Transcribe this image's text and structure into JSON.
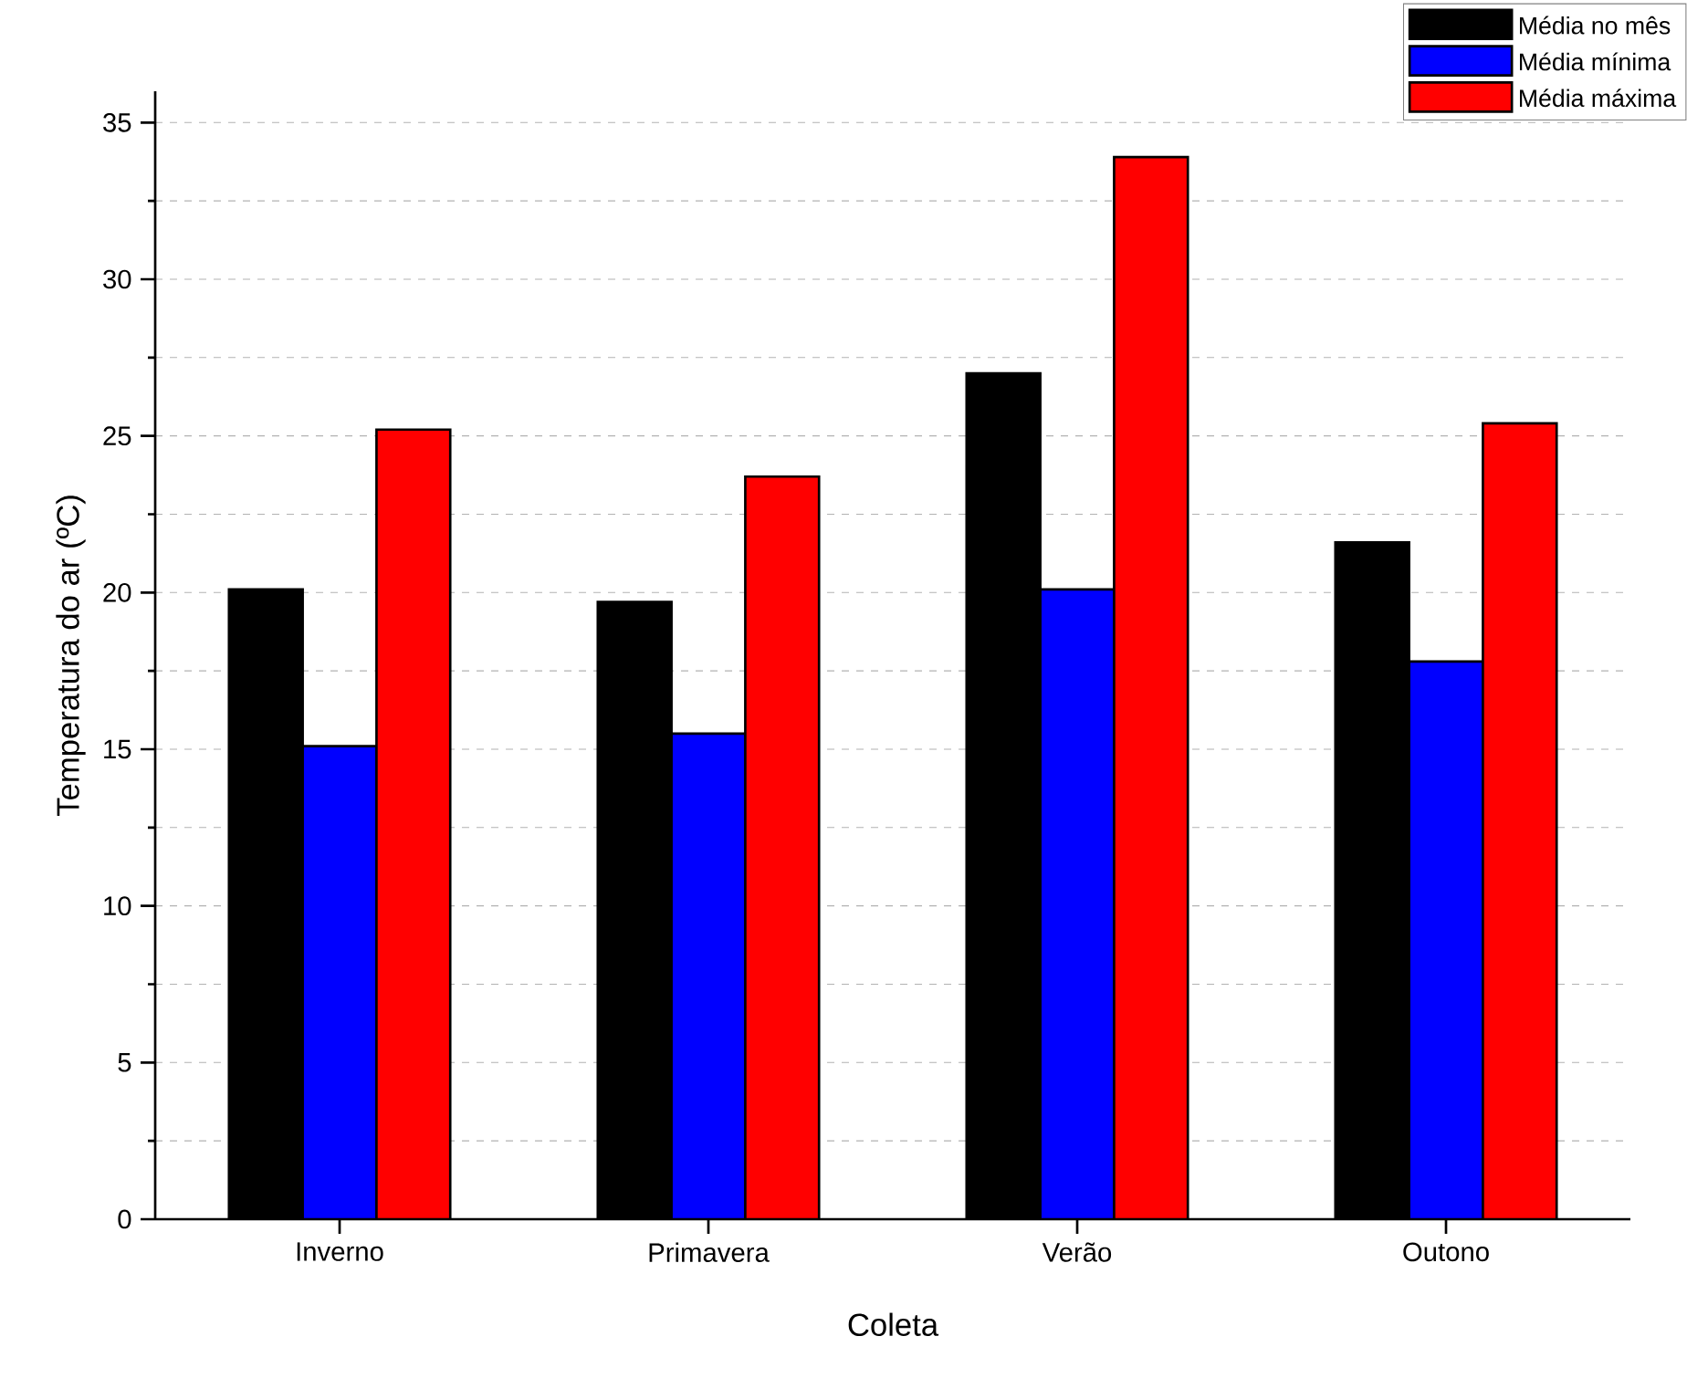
{
  "chart_data": {
    "type": "bar",
    "xlabel": "Coleta",
    "ylabel": "Temperatura do ar (ºC)",
    "categories": [
      "Inverno",
      "Primavera",
      "Verão",
      "Outono"
    ],
    "series": [
      {
        "name": "Média no mês",
        "color": "#000000",
        "values": [
          20.1,
          19.7,
          27.0,
          21.6
        ]
      },
      {
        "name": "Média mínima",
        "color": "#0000ff",
        "values": [
          15.1,
          15.5,
          20.1,
          17.8
        ]
      },
      {
        "name": "Média máxima",
        "color": "#ff0000",
        "values": [
          25.2,
          23.7,
          33.9,
          25.4
        ]
      }
    ],
    "ylim": [
      0,
      36
    ],
    "yticks": [
      0,
      5,
      10,
      15,
      20,
      25,
      30,
      35
    ],
    "grid": "y",
    "legend": "top right"
  }
}
